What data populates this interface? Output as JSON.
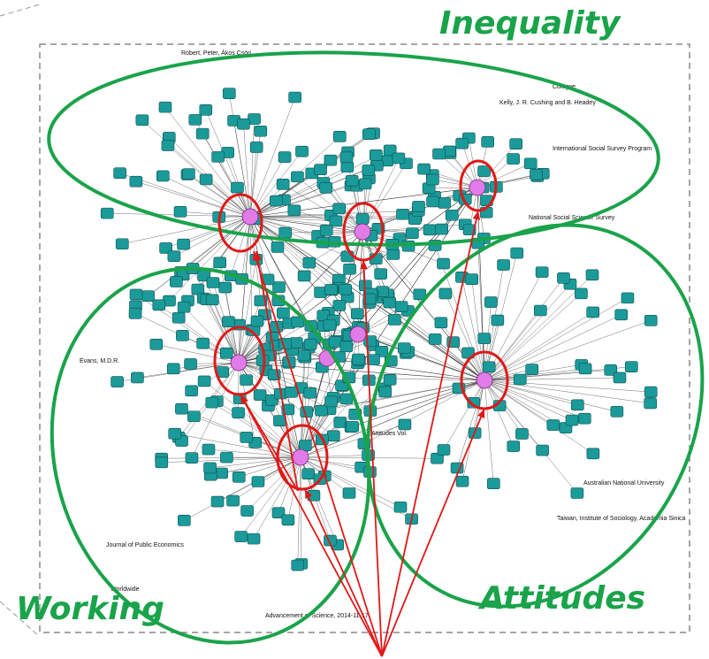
{
  "labels": {
    "inequality": "Inequality",
    "working": "Working",
    "attitudes": "Attitudes"
  },
  "node_labels": [
    "Robert, Peter, Ákos Csöri",
    "Kelly, J. R. Cushing and B. Headey",
    "International Social Survey Program",
    "National Social Science Survey",
    "Cologne",
    "Evans, M.D.R.",
    "Advancement of Science, 2014-11-17",
    "Journal of Public Economics",
    "Australian National University",
    "Taiwan, Institute of Sociology, Academia Sinica",
    "Attitudes Vol.",
    "Worldwide"
  ]
}
